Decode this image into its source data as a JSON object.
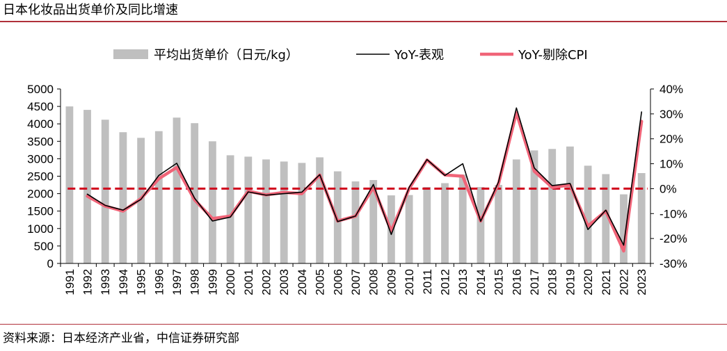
{
  "header": {
    "title": "日本化妆品出货单价及同比增速"
  },
  "footer": {
    "source": "资料来源：日本经济产业省，中信证券研究部"
  },
  "chart_data": {
    "type": "bar+line",
    "title": "日本化妆品出货单价及同比增速",
    "legend_position": "top",
    "categories": [
      "1991",
      "1992",
      "1993",
      "1994",
      "1995",
      "1996",
      "1997",
      "1998",
      "1999",
      "2000",
      "2001",
      "2002",
      "2003",
      "2004",
      "2005",
      "2006",
      "2007",
      "2008",
      "2009",
      "2010",
      "2011",
      "2012",
      "2013",
      "2014",
      "2015",
      "2016",
      "2017",
      "2018",
      "2019",
      "2020",
      "2021",
      "2022",
      "2023"
    ],
    "y_left": {
      "min": 0,
      "max": 5000,
      "step": 500,
      "ticks": [
        "0",
        "500",
        "1000",
        "1500",
        "2000",
        "2500",
        "3000",
        "3500",
        "4000",
        "4500",
        "5000"
      ]
    },
    "y_right": {
      "min": -30,
      "max": 40,
      "step": 10,
      "ticks": [
        "-30%",
        "-20%",
        "-10%",
        "0%",
        "10%",
        "20%",
        "30%",
        "40%"
      ]
    },
    "series": [
      {
        "name": "平均出货单价（日元/kg）",
        "type": "bar",
        "axis": "left",
        "color": "#bfbfbf",
        "values": [
          4500,
          4400,
          4120,
          3760,
          3600,
          3790,
          4180,
          4020,
          3500,
          3100,
          3060,
          2980,
          2920,
          2880,
          3040,
          2640,
          2350,
          2390,
          1950,
          1960,
          2190,
          2300,
          2550,
          2190,
          2250,
          2980,
          3240,
          3280,
          3350,
          2800,
          2560,
          1980,
          2590
        ]
      },
      {
        "name": "YoY-表观",
        "type": "line",
        "axis": "right",
        "color": "#000000",
        "values": [
          null,
          -2.2,
          -6.7,
          -8.6,
          -4.3,
          5.3,
          10.2,
          -3.8,
          -13.0,
          -11.4,
          -1.3,
          -2.6,
          -2.0,
          -1.4,
          5.6,
          -13.2,
          -11.0,
          1.7,
          -18.4,
          0.5,
          11.7,
          5.3,
          10.0,
          -13.1,
          2.7,
          32.4,
          8.3,
          1.2,
          2.1,
          -16.4,
          -8.6,
          -22.7,
          30.8
        ]
      },
      {
        "name": "YoY-剔除CPI",
        "type": "line",
        "axis": "right",
        "color": "#f06478",
        "values": [
          null,
          -3.0,
          -7.0,
          -9.0,
          -4.0,
          4.0,
          8.5,
          -4.5,
          -12.0,
          -11.0,
          -1.0,
          -2.5,
          -1.5,
          -2.0,
          5.5,
          -13.0,
          -11.0,
          0.5,
          -17.0,
          0.0,
          11.5,
          5.5,
          5.0,
          -13.0,
          2.0,
          30.5,
          7.0,
          0.5,
          1.5,
          -15.0,
          -9.0,
          -25.0,
          27.0
        ]
      }
    ],
    "reference_line": {
      "axis": "right",
      "value": 0,
      "color": "#d0021b",
      "style": "dashed"
    }
  }
}
